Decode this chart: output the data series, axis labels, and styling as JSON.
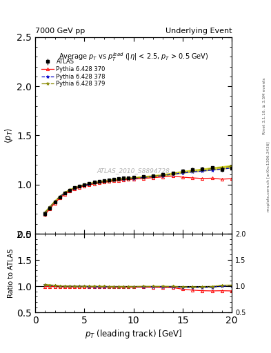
{
  "title_left": "7000 GeV pp",
  "title_right": "Underlying Event",
  "panel_title": "Average $p_T$ vs $p_T^{lead}$ ($|\\eta|$ < 2.5, $p_T$ > 0.5 GeV)",
  "watermark": "ATLAS_2010_S8894728",
  "right_label_top": "Rivet 3.1.10, ≥ 3.5M events",
  "right_label_bot": "mcplots.cern.ch [arXiv:1306.3436]",
  "xlabel": "$p_T$ (leading track) [GeV]",
  "ylabel_main": "$\\langle p_T \\rangle$",
  "ylabel_ratio": "Ratio to ATLAS",
  "xlim": [
    0,
    20
  ],
  "ylim_main": [
    0.5,
    2.5
  ],
  "ylim_ratio": [
    0.5,
    2.0
  ],
  "atlas_x": [
    1.0,
    1.5,
    2.0,
    2.5,
    3.0,
    3.5,
    4.0,
    4.5,
    5.0,
    5.5,
    6.0,
    6.5,
    7.0,
    7.5,
    8.0,
    8.5,
    9.0,
    9.5,
    10.0,
    11.0,
    12.0,
    13.0,
    14.0,
    15.0,
    16.0,
    17.0,
    18.0,
    19.0,
    20.0
  ],
  "atlas_y": [
    0.7,
    0.76,
    0.82,
    0.875,
    0.915,
    0.945,
    0.968,
    0.985,
    1.0,
    1.012,
    1.023,
    1.032,
    1.04,
    1.048,
    1.055,
    1.061,
    1.066,
    1.07,
    1.074,
    1.082,
    1.092,
    1.103,
    1.118,
    1.14,
    1.155,
    1.162,
    1.17,
    1.155,
    1.165
  ],
  "atlas_yerr": [
    0.025,
    0.018,
    0.014,
    0.011,
    0.01,
    0.009,
    0.009,
    0.009,
    0.009,
    0.009,
    0.009,
    0.009,
    0.009,
    0.009,
    0.009,
    0.009,
    0.009,
    0.009,
    0.009,
    0.009,
    0.009,
    0.01,
    0.011,
    0.016,
    0.016,
    0.016,
    0.016,
    0.022,
    0.022
  ],
  "p370_x": [
    1.0,
    1.5,
    2.0,
    2.5,
    3.0,
    3.5,
    4.0,
    4.5,
    5.0,
    5.5,
    6.0,
    6.5,
    7.0,
    7.5,
    8.0,
    8.5,
    9.0,
    9.5,
    10.0,
    11.0,
    12.0,
    13.0,
    14.0,
    15.0,
    16.0,
    17.0,
    18.0,
    19.0,
    20.0
  ],
  "p370_y": [
    0.695,
    0.755,
    0.812,
    0.863,
    0.902,
    0.932,
    0.954,
    0.972,
    0.986,
    0.997,
    1.007,
    1.016,
    1.023,
    1.03,
    1.037,
    1.042,
    1.047,
    1.051,
    1.055,
    1.062,
    1.07,
    1.078,
    1.088,
    1.075,
    1.068,
    1.062,
    1.065,
    1.055,
    1.06
  ],
  "p378_x": [
    1.0,
    1.5,
    2.0,
    2.5,
    3.0,
    3.5,
    4.0,
    4.5,
    5.0,
    5.5,
    6.0,
    6.5,
    7.0,
    7.5,
    8.0,
    8.5,
    9.0,
    9.5,
    10.0,
    11.0,
    12.0,
    13.0,
    14.0,
    15.0,
    16.0,
    17.0,
    18.0,
    19.0,
    20.0
  ],
  "p378_y": [
    0.715,
    0.772,
    0.828,
    0.877,
    0.915,
    0.943,
    0.964,
    0.981,
    0.995,
    1.006,
    1.016,
    1.024,
    1.032,
    1.039,
    1.046,
    1.051,
    1.056,
    1.06,
    1.064,
    1.072,
    1.082,
    1.092,
    1.105,
    1.118,
    1.128,
    1.137,
    1.148,
    1.158,
    1.168
  ],
  "p379_x": [
    1.0,
    1.5,
    2.0,
    2.5,
    3.0,
    3.5,
    4.0,
    4.5,
    5.0,
    5.5,
    6.0,
    6.5,
    7.0,
    7.5,
    8.0,
    8.5,
    9.0,
    9.5,
    10.0,
    11.0,
    12.0,
    13.0,
    14.0,
    15.0,
    16.0,
    17.0,
    18.0,
    19.0,
    20.0
  ],
  "p379_y": [
    0.718,
    0.775,
    0.831,
    0.88,
    0.918,
    0.946,
    0.967,
    0.984,
    0.998,
    1.009,
    1.019,
    1.027,
    1.035,
    1.042,
    1.049,
    1.055,
    1.06,
    1.064,
    1.068,
    1.077,
    1.087,
    1.098,
    1.112,
    1.128,
    1.14,
    1.15,
    1.163,
    1.172,
    1.185
  ],
  "p379_band_lo": [
    0.012,
    0.01,
    0.009,
    0.008,
    0.008,
    0.008,
    0.008,
    0.008,
    0.008,
    0.008,
    0.008,
    0.008,
    0.008,
    0.008,
    0.008,
    0.008,
    0.008,
    0.008,
    0.008,
    0.008,
    0.008,
    0.008,
    0.009,
    0.01,
    0.01,
    0.011,
    0.012,
    0.013,
    0.014
  ],
  "p379_band_hi": [
    0.012,
    0.01,
    0.009,
    0.008,
    0.008,
    0.008,
    0.008,
    0.008,
    0.008,
    0.008,
    0.008,
    0.008,
    0.008,
    0.008,
    0.008,
    0.008,
    0.008,
    0.008,
    0.008,
    0.008,
    0.008,
    0.008,
    0.009,
    0.01,
    0.01,
    0.011,
    0.012,
    0.013,
    0.014
  ],
  "color_atlas": "#000000",
  "color_p370": "#ff0000",
  "color_p378": "#0000cc",
  "color_p379": "#888800",
  "band_color_main": "#cccc00",
  "band_color_ratio": "#aaaa00",
  "legend_labels": [
    "ATLAS",
    "Pythia 6.428 370",
    "Pythia 6.428 378",
    "Pythia 6.428 379"
  ],
  "yticks_main": [
    0.5,
    1.0,
    1.5,
    2.0,
    2.5
  ],
  "yticks_ratio": [
    0.5,
    1.0,
    1.5,
    2.0
  ],
  "xticks": [
    0,
    5,
    10,
    15,
    20
  ]
}
